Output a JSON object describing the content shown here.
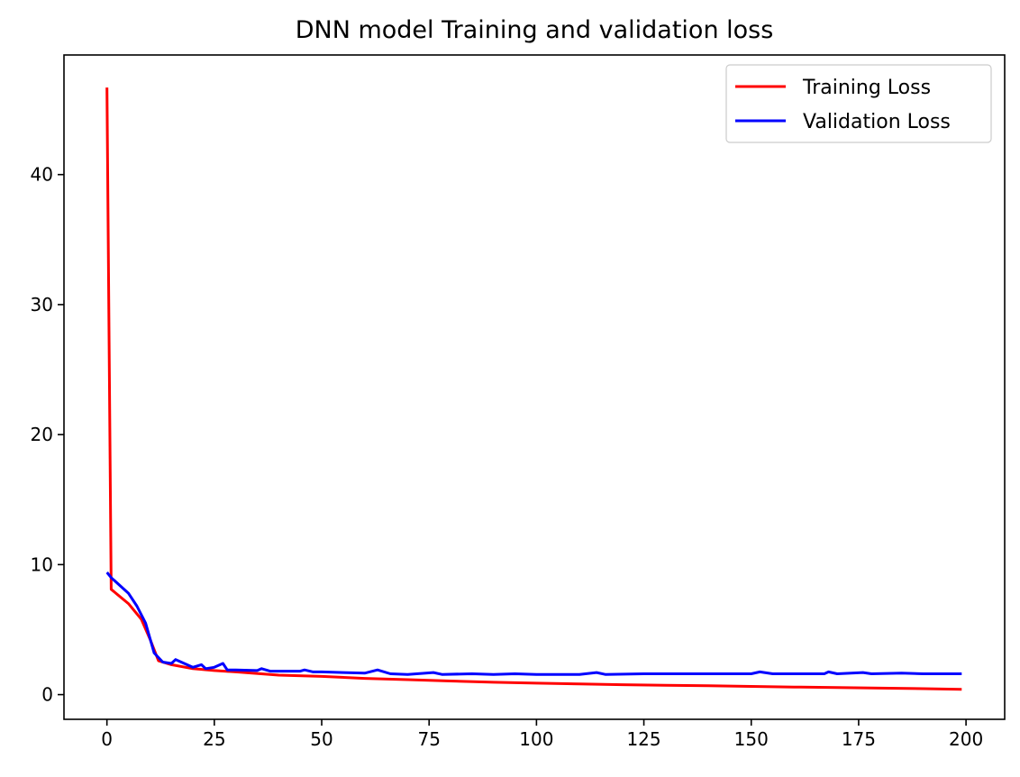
{
  "chart_data": {
    "type": "line",
    "title": "DNN model Training and validation loss",
    "xlabel": "",
    "ylabel": "",
    "xlim": [
      -10,
      209
    ],
    "ylim": [
      -1.9,
      49.2
    ],
    "xticks": [
      0,
      25,
      50,
      75,
      100,
      125,
      150,
      175,
      200
    ],
    "yticks": [
      0,
      10,
      20,
      30,
      40
    ],
    "grid": false,
    "legend": "top-right",
    "colors": {
      "Training Loss": "#ff0000",
      "Validation Loss": "#0000ff"
    },
    "series": [
      {
        "name": "Training Loss",
        "x": [
          0,
          1,
          5,
          8,
          10,
          12,
          15,
          20,
          25,
          30,
          40,
          50,
          60,
          70,
          80,
          90,
          100,
          110,
          120,
          130,
          140,
          150,
          160,
          170,
          180,
          190,
          199
        ],
        "values": [
          46.7,
          8.1,
          7.0,
          5.8,
          4.3,
          2.6,
          2.3,
          2.0,
          1.85,
          1.75,
          1.5,
          1.4,
          1.25,
          1.15,
          1.05,
          0.95,
          0.88,
          0.82,
          0.76,
          0.72,
          0.68,
          0.63,
          0.58,
          0.54,
          0.5,
          0.46,
          0.4
        ]
      },
      {
        "name": "Validation Loss",
        "x": [
          0,
          1,
          5,
          7,
          9,
          11,
          13,
          15,
          16,
          20,
          22,
          23,
          25,
          27,
          28,
          30,
          35,
          36,
          38,
          45,
          46,
          48,
          50,
          55,
          60,
          63,
          66,
          70,
          76,
          78,
          85,
          90,
          95,
          100,
          110,
          114,
          116,
          125,
          130,
          140,
          150,
          152,
          155,
          160,
          167,
          168,
          170,
          176,
          178,
          185,
          190,
          199
        ],
        "values": [
          9.4,
          9.0,
          7.8,
          6.8,
          5.5,
          3.2,
          2.5,
          2.4,
          2.7,
          2.1,
          2.3,
          2.0,
          2.1,
          2.4,
          1.9,
          1.9,
          1.85,
          2.0,
          1.8,
          1.8,
          1.9,
          1.75,
          1.75,
          1.7,
          1.65,
          1.9,
          1.6,
          1.55,
          1.7,
          1.55,
          1.6,
          1.55,
          1.6,
          1.55,
          1.55,
          1.7,
          1.55,
          1.6,
          1.6,
          1.6,
          1.6,
          1.75,
          1.6,
          1.6,
          1.6,
          1.75,
          1.6,
          1.7,
          1.6,
          1.65,
          1.6,
          1.6
        ]
      }
    ]
  }
}
